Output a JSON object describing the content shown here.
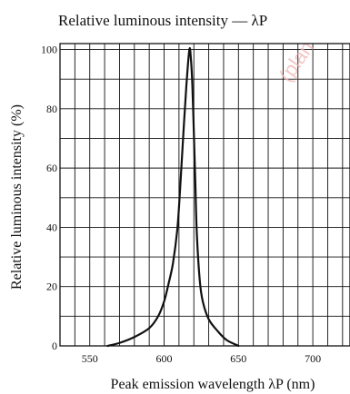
{
  "chart_data": {
    "type": "line",
    "title": "Relative luminous intensity — λP",
    "xlabel": "Peak emission wavelength  λP (nm)",
    "ylabel": "Relative luminous intensity  (%)",
    "xlim": [
      530,
      725
    ],
    "ylim": [
      0,
      102
    ],
    "xticks": [
      550,
      600,
      650,
      700
    ],
    "yticks": [
      0,
      20,
      40,
      60,
      80,
      100
    ],
    "x_grid_step": 10,
    "y_grid_step": 10,
    "grid": true,
    "series": [
      {
        "color": "#111111",
        "x": [
          562,
          570,
          580,
          590,
          596,
          600,
          603,
          606,
          609,
          611,
          613,
          615,
          617,
          618,
          619,
          620,
          621,
          622,
          624,
          626,
          630,
          636,
          642,
          650
        ],
        "y": [
          0,
          1,
          3,
          6,
          10,
          15,
          21,
          28,
          40,
          55,
          72,
          88,
          100,
          97,
          88,
          72,
          55,
          38,
          22,
          15,
          9,
          5,
          2,
          0
        ]
      }
    ]
  },
  "watermark": {
    "text": "(plan"
  }
}
